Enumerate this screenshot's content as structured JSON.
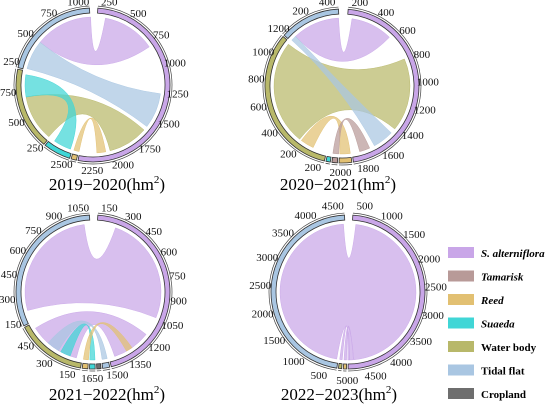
{
  "legend": [
    {
      "label": "S. alterniflora",
      "color": "#c9a6e8",
      "italic": true
    },
    {
      "label": "Tamarisk",
      "color": "#b89a98",
      "italic": true
    },
    {
      "label": "Reed",
      "color": "#e2c072",
      "italic": true
    },
    {
      "label": "Suaeda",
      "color": "#40d6d6",
      "italic": true
    },
    {
      "label": "Water body",
      "color": "#b8b86a",
      "italic": false
    },
    {
      "label": "Tidal flat",
      "color": "#a9c6e2",
      "italic": false
    },
    {
      "label": "Cropland",
      "color": "#6e6e6e",
      "italic": false
    }
  ],
  "chart_data": [
    {
      "type": "chord",
      "title": "2019−2020(hm2)",
      "title_main": "2019−2020(hm",
      "title_sup": "2",
      "title_end": ")",
      "unit": "hm2",
      "axis_max": 2630,
      "axis_start_deg": 3,
      "ticks": [
        "250",
        "500",
        "750",
        "1000",
        "1250",
        "1500",
        "1750",
        "2000",
        "2250",
        "2500",
        "250",
        "500",
        "750",
        "250",
        "500",
        "750",
        "1000"
      ],
      "categories": [
        "S. alterniflora",
        "Tamarisk",
        "Reed",
        "Suaeda",
        "Water body",
        "Tidal flat"
      ],
      "arcs": [
        {
          "class": "S. alterniflora",
          "start": 0,
          "end": 2500,
          "color": "#c9a6e8"
        },
        {
          "class": "Reed",
          "start": 2500,
          "end": 2570,
          "color": "#e2c072"
        },
        {
          "class": "Suaeda",
          "start": 2570,
          "end": 2860,
          "color": "#40d6d6"
        },
        {
          "class": "Water body",
          "start": 2860,
          "end": 3700,
          "color": "#b8b86a"
        },
        {
          "class": "Tidal flat",
          "start": 3700,
          "end": 4700,
          "color": "#a9c6e2"
        }
      ],
      "flows": [
        {
          "from": "Tidal flat",
          "to": "S. alterniflora",
          "source": [
            4050,
            4700
          ],
          "target": [
            100,
            700
          ],
          "color": "#c9a6e8"
        },
        {
          "from": "S. alterniflora",
          "to": "Tidal flat",
          "source": [
            1250,
            1650
          ],
          "target": [
            3720,
            4050
          ],
          "color": "#a9c6e2"
        },
        {
          "from": "Water body",
          "to": "S. alterniflora",
          "source": [
            2880,
            3400
          ],
          "target": [
            1700,
            2150
          ],
          "color": "#b8b86a"
        },
        {
          "from": "Suaeda",
          "to": "Water body",
          "source": [
            2600,
            2800
          ],
          "target": [
            3400,
            3650
          ],
          "color": "#40d6d6"
        },
        {
          "from": "Reed",
          "to": "S. alterniflora",
          "source": [
            2500,
            2560
          ],
          "target": [
            2200,
            2300
          ],
          "color": "#e2c072"
        }
      ]
    },
    {
      "type": "chord",
      "title": "2020−2021(hm2)",
      "title_main": "2020−2021(hm",
      "title_sup": "2",
      "title_end": ")",
      "unit": "hm2",
      "axis_max": 2120,
      "axis_start_deg": 4,
      "ticks": [
        "200",
        "400",
        "600",
        "800",
        "1000",
        "1200",
        "1400",
        "1600",
        "1800",
        "2000",
        "200",
        "200",
        "400",
        "600",
        "800",
        "1000",
        "1200",
        "200",
        "400"
      ],
      "categories": [
        "S. alterniflora",
        "Tamarisk",
        "Reed",
        "Suaeda",
        "Water body",
        "Tidal flat"
      ],
      "arcs": [
        {
          "class": "S. alterniflora",
          "start": 0,
          "end": 1880,
          "color": "#c9a6e8"
        },
        {
          "class": "Reed",
          "start": 1880,
          "end": 2000,
          "color": "#e2c072"
        },
        {
          "class": "Tamarisk",
          "start": 2000,
          "end": 2060,
          "color": "#b89a98"
        },
        {
          "class": "Suaeda",
          "start": 2060,
          "end": 2110,
          "color": "#40d6d6"
        },
        {
          "class": "Water body",
          "start": 2110,
          "end": 3430,
          "color": "#b8b86a"
        },
        {
          "class": "Tidal flat",
          "start": 3430,
          "end": 3960,
          "color": "#a9c6e2"
        }
      ],
      "flows": [
        {
          "from": "Water body",
          "to": "S. alterniflora",
          "source": [
            2400,
            3400
          ],
          "target": [
            700,
            1400
          ],
          "color": "#b8b86a"
        },
        {
          "from": "Tidal flat",
          "to": "S. alterniflora",
          "source": [
            3500,
            3950
          ],
          "target": [
            50,
            450
          ],
          "color": "#c9a6e8"
        },
        {
          "from": "S. alterniflora",
          "to": "Tidal flat",
          "source": [
            1450,
            1650
          ],
          "target": [
            3450,
            3500
          ],
          "color": "#a9c6e2"
        },
        {
          "from": "Reed",
          "to": "Water body",
          "source": [
            1890,
            1990
          ],
          "target": [
            2250,
            2380
          ],
          "color": "#e2c072"
        },
        {
          "from": "Tamarisk",
          "to": "S. alterniflora",
          "source": [
            2000,
            2055
          ],
          "target": [
            1700,
            1800
          ],
          "color": "#b89a98"
        }
      ]
    },
    {
      "type": "chord",
      "title": "2021−2022(hm2)",
      "title_main": "2021−2022(hm",
      "title_sup": "2",
      "title_end": ")",
      "unit": "hm2",
      "axis_max": 1720,
      "axis_start_deg": 3,
      "ticks": [
        "150",
        "300",
        "450",
        "600",
        "750",
        "900",
        "1050",
        "1200",
        "1350",
        "1500",
        "1650",
        "150",
        "300",
        "450",
        "150",
        "300",
        "450",
        "600",
        "750",
        "900",
        "1050"
      ],
      "categories": [
        "S. alterniflora",
        "Tamarisk",
        "Reed",
        "Suaeda",
        "Water body",
        "Tidal flat",
        "Cropland"
      ],
      "arcs": [
        {
          "class": "S. alterniflora",
          "start": 0,
          "end": 1500,
          "color": "#c9a6e8"
        },
        {
          "class": "Tidal flat",
          "start": 1500,
          "end": 1560,
          "color": "#a9c6e2"
        },
        {
          "class": "Cropland",
          "start": 1560,
          "end": 1600,
          "color": "#6e6e6e"
        },
        {
          "class": "Suaeda",
          "start": 1600,
          "end": 1650,
          "color": "#40d6d6"
        },
        {
          "class": "Reed",
          "start": 1650,
          "end": 1700,
          "color": "#e2c072"
        },
        {
          "class": "Water body",
          "start": 1700,
          "end": 2200,
          "color": "#b8b86a"
        },
        {
          "class": "Tidal flat",
          "start": 2200,
          "end": 3250,
          "color": "#a9c6e2"
        }
      ],
      "flows": [
        {
          "from": "Tidal flat",
          "to": "S. alterniflora",
          "source": [
            2300,
            3200
          ],
          "target": [
            150,
            1000
          ],
          "color": "#c9a6e8"
        },
        {
          "from": "Water body",
          "to": "S. alterniflora",
          "source": [
            1750,
            2150
          ],
          "target": [
            1150,
            1450
          ],
          "color": "#c9a6e8"
        },
        {
          "from": "Tidal flat",
          "to": "Water body",
          "source": [
            1510,
            1550
          ],
          "target": [
            1900,
            2000
          ],
          "color": "#a9c6e2"
        },
        {
          "from": "Suaeda",
          "to": "Water body",
          "source": [
            1605,
            1645
          ],
          "target": [
            1800,
            1880
          ],
          "color": "#40d6d6"
        },
        {
          "from": "Reed",
          "to": "S. alterniflora",
          "source": [
            1655,
            1695
          ],
          "target": [
            1300,
            1350
          ],
          "color": "#e2c072"
        }
      ]
    },
    {
      "type": "chord",
      "title": "2022−2023(hm2)",
      "title_main": "2022−2023(hm",
      "title_sup": "2",
      "title_end": ")",
      "unit": "hm2",
      "axis_max": 5200,
      "axis_start_deg": 3,
      "ticks": [
        "500",
        "1000",
        "1500",
        "2000",
        "2500",
        "3000",
        "3500",
        "4000",
        "4500",
        "5000",
        "500",
        "1000",
        "1500",
        "2000",
        "2500",
        "3000",
        "3500",
        "4000",
        "4500"
      ],
      "categories": [
        "S. alterniflora",
        "Reed",
        "Water body",
        "Tidal flat"
      ],
      "arcs": [
        {
          "class": "S. alterniflora",
          "start": 0,
          "end": 4900,
          "color": "#c9a6e8"
        },
        {
          "class": "Reed",
          "start": 4900,
          "end": 5000,
          "color": "#e2c072"
        },
        {
          "class": "Water body",
          "start": 5000,
          "end": 5100,
          "color": "#b8b86a"
        },
        {
          "class": "Tidal flat",
          "start": 5100,
          "end": 9800,
          "color": "#a9c6e2"
        }
      ],
      "flows": [
        {
          "from": "Tidal flat",
          "to": "S. alterniflora",
          "source": [
            5150,
            9750
          ],
          "target": [
            100,
            4750
          ],
          "color": "#c9a6e8"
        },
        {
          "from": "Reed",
          "to": "S. alterniflora",
          "source": [
            4920,
            4980
          ],
          "target": [
            4760,
            4850
          ],
          "color": "#c9a6e8"
        },
        {
          "from": "Water body",
          "to": "S. alterniflora",
          "source": [
            5020,
            5080
          ],
          "target": [
            4850,
            4890
          ],
          "color": "#c9a6e8"
        }
      ]
    }
  ]
}
